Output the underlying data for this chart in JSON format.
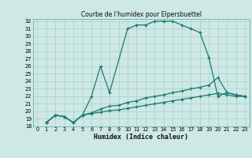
{
  "title": "Courbe de l'humidex pour Elpersbuettel",
  "xlabel": "Humidex (Indice chaleur)",
  "bg_color": "#cde8e5",
  "line_color": "#1a7a6e",
  "grid_color": "#aacfcb",
  "xlim": [
    -0.5,
    23.5
  ],
  "ylim": [
    18,
    32.3
  ],
  "yticks": [
    18,
    19,
    20,
    21,
    22,
    23,
    24,
    25,
    26,
    27,
    28,
    29,
    30,
    31,
    32
  ],
  "xticks": [
    0,
    1,
    2,
    3,
    4,
    5,
    6,
    7,
    8,
    9,
    10,
    11,
    12,
    13,
    14,
    15,
    16,
    17,
    18,
    19,
    20,
    21,
    22,
    23
  ],
  "curve1_x": [
    1,
    2,
    3,
    4,
    5,
    6,
    7,
    8,
    10,
    11,
    12,
    13,
    14,
    15,
    16,
    17,
    18,
    19,
    20,
    21,
    22,
    23
  ],
  "curve1_y": [
    18.5,
    19.5,
    19.3,
    18.5,
    19.5,
    22.0,
    26.0,
    22.5,
    31.0,
    31.5,
    31.5,
    32.0,
    32.0,
    32.0,
    31.5,
    31.0,
    30.5,
    27.2,
    22.0,
    22.5,
    22.2,
    22.0
  ],
  "curve2_x": [
    1,
    2,
    3,
    4,
    5,
    6,
    7,
    8,
    9,
    10,
    11,
    12,
    13,
    14,
    15,
    16,
    17,
    18,
    19,
    20,
    21,
    22,
    23
  ],
  "curve2_y": [
    18.5,
    19.5,
    19.3,
    18.5,
    19.5,
    19.8,
    20.3,
    20.7,
    20.8,
    21.2,
    21.4,
    21.8,
    22.0,
    22.2,
    22.5,
    22.7,
    23.0,
    23.2,
    23.5,
    24.5,
    22.5,
    22.2,
    22.0
  ],
  "curve3_x": [
    1,
    2,
    3,
    4,
    5,
    6,
    7,
    8,
    9,
    10,
    11,
    12,
    13,
    14,
    15,
    16,
    17,
    18,
    19,
    20,
    21,
    22,
    23
  ],
  "curve3_y": [
    18.5,
    19.5,
    19.3,
    18.5,
    19.5,
    19.7,
    19.9,
    20.1,
    20.2,
    20.4,
    20.6,
    20.8,
    21.0,
    21.2,
    21.4,
    21.6,
    21.8,
    22.0,
    22.2,
    22.4,
    22.2,
    22.0,
    22.0
  ]
}
